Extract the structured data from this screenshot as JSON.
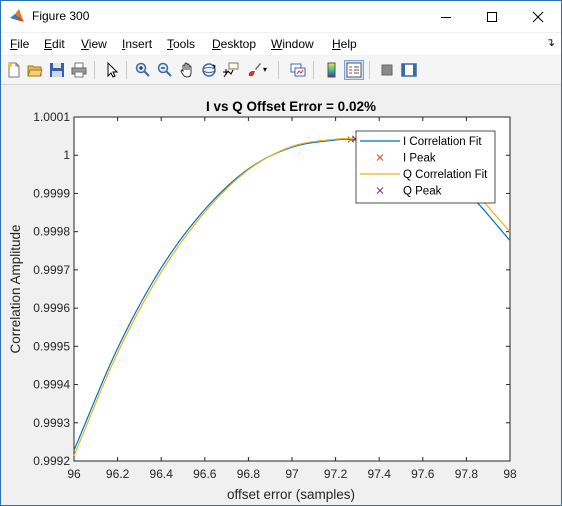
{
  "window": {
    "title": "Figure 300",
    "icon": "matlab-icon",
    "controls": [
      "minimize-icon",
      "maximize-icon",
      "close-icon"
    ]
  },
  "menu": [
    {
      "label": "File",
      "u": "F",
      "rest": "ile"
    },
    {
      "label": "Edit",
      "u": "E",
      "rest": "dit"
    },
    {
      "label": "View",
      "u": "V",
      "rest": "iew"
    },
    {
      "label": "Insert",
      "u": "I",
      "rest": "nsert"
    },
    {
      "label": "Tools",
      "u": "T",
      "rest": "ools"
    },
    {
      "label": "Desktop",
      "u": "D",
      "rest": "esktop"
    },
    {
      "label": "Window",
      "u": "W",
      "rest": "indow"
    },
    {
      "label": "Help",
      "u": "H",
      "rest": "elp"
    }
  ],
  "toolbar": [
    "new-figure-icon",
    "open-file-icon",
    "save-icon",
    "print-icon",
    "edit-plot-arrow-icon",
    "zoom-in-icon",
    "zoom-out-icon",
    "pan-hand-icon",
    "rotate-3d-icon",
    "data-cursor-icon",
    "brush-icon",
    "link-plot-icon",
    "colorbar-icon",
    "legend-icon",
    "hide-plot-tools-icon",
    "show-plot-tools-icon"
  ],
  "chart_data": {
    "type": "line",
    "title": "I vs Q Offset Error = 0.02%",
    "xlabel": "offset error (samples)",
    "ylabel": "Correlation Amplitude",
    "xlim": [
      96,
      98
    ],
    "ylim": [
      0.9992,
      1.0001
    ],
    "xticks": [
      "96",
      "96.2",
      "96.4",
      "96.6",
      "96.8",
      "97",
      "97.2",
      "97.4",
      "97.6",
      "97.8",
      "98"
    ],
    "yticks": [
      "0.9992",
      "0.9993",
      "0.9994",
      "0.9995",
      "0.9996",
      "0.9997",
      "0.9998",
      "0.9999",
      "1",
      "1.0001"
    ],
    "grid": false,
    "legend_position": "top-right",
    "series": [
      {
        "name": "I Correlation Fit",
        "kind": "line",
        "color": "#0072bd",
        "x": [
          96.0,
          96.2,
          96.4,
          96.6,
          96.8,
          97.0,
          97.2,
          97.27,
          97.4,
          97.6,
          97.8,
          98.0
        ],
        "y": [
          0.999228,
          0.999495,
          0.999705,
          0.999858,
          0.999964,
          1.000021,
          1.00004,
          1.000041,
          1.00003,
          0.999987,
          0.999905,
          0.999777
        ]
      },
      {
        "name": "I Peak",
        "kind": "marker",
        "marker": "x",
        "color": "#d95319",
        "x": [
          97.27
        ],
        "y": [
          1.000041
        ]
      },
      {
        "name": "Q Correlation Fit",
        "kind": "line",
        "color": "#edb120",
        "x": [
          96.0,
          96.2,
          96.4,
          96.6,
          96.8,
          97.0,
          97.2,
          97.29,
          97.4,
          97.6,
          97.8,
          98.0
        ],
        "y": [
          0.999214,
          0.999483,
          0.999694,
          0.999851,
          0.999962,
          1.000023,
          1.000042,
          1.000043,
          1.000036,
          1.0,
          0.999924,
          0.9998
        ]
      },
      {
        "name": "Q Peak",
        "kind": "marker",
        "marker": "x",
        "color": "#7e2f8e",
        "x": [
          97.29
        ],
        "y": [
          1.000043
        ]
      }
    ]
  }
}
